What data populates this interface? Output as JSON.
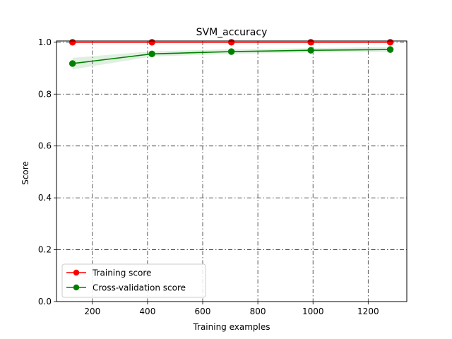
{
  "chart_data": {
    "type": "line",
    "title": "SVM_accuracy",
    "xlabel": "Training examples",
    "ylabel": "Score",
    "xlim": [
      70,
      1340
    ],
    "ylim": [
      0.0,
      1.005
    ],
    "x_ticks": [
      200,
      400,
      600,
      800,
      1000,
      1200
    ],
    "y_ticks": [
      0.0,
      0.2,
      0.4,
      0.6,
      0.8,
      1.0
    ],
    "x_tick_labels": [
      "200",
      "400",
      "600",
      "800",
      "1000",
      "1200"
    ],
    "y_tick_labels": [
      "0.0",
      "0.2",
      "0.4",
      "0.6",
      "0.8",
      "1.0"
    ],
    "grid": true,
    "grid_style": "dash-dot",
    "legend_position": "lower-left",
    "x": [
      128,
      416,
      704,
      992,
      1280
    ],
    "series": [
      {
        "name": "Training score",
        "color": "#ff0000",
        "values": [
          1.0,
          1.0,
          1.0,
          1.0,
          1.0
        ],
        "band_lower": [
          1.0,
          1.0,
          1.0,
          1.0,
          1.0
        ],
        "band_upper": [
          1.0,
          1.0,
          1.0,
          1.0,
          1.0
        ]
      },
      {
        "name": "Cross-validation score",
        "color": "#008000",
        "values": [
          0.918,
          0.955,
          0.964,
          0.969,
          0.972
        ],
        "band_lower": [
          0.895,
          0.945,
          0.955,
          0.961,
          0.962
        ],
        "band_upper": [
          0.94,
          0.965,
          0.973,
          0.977,
          0.982
        ]
      }
    ]
  }
}
